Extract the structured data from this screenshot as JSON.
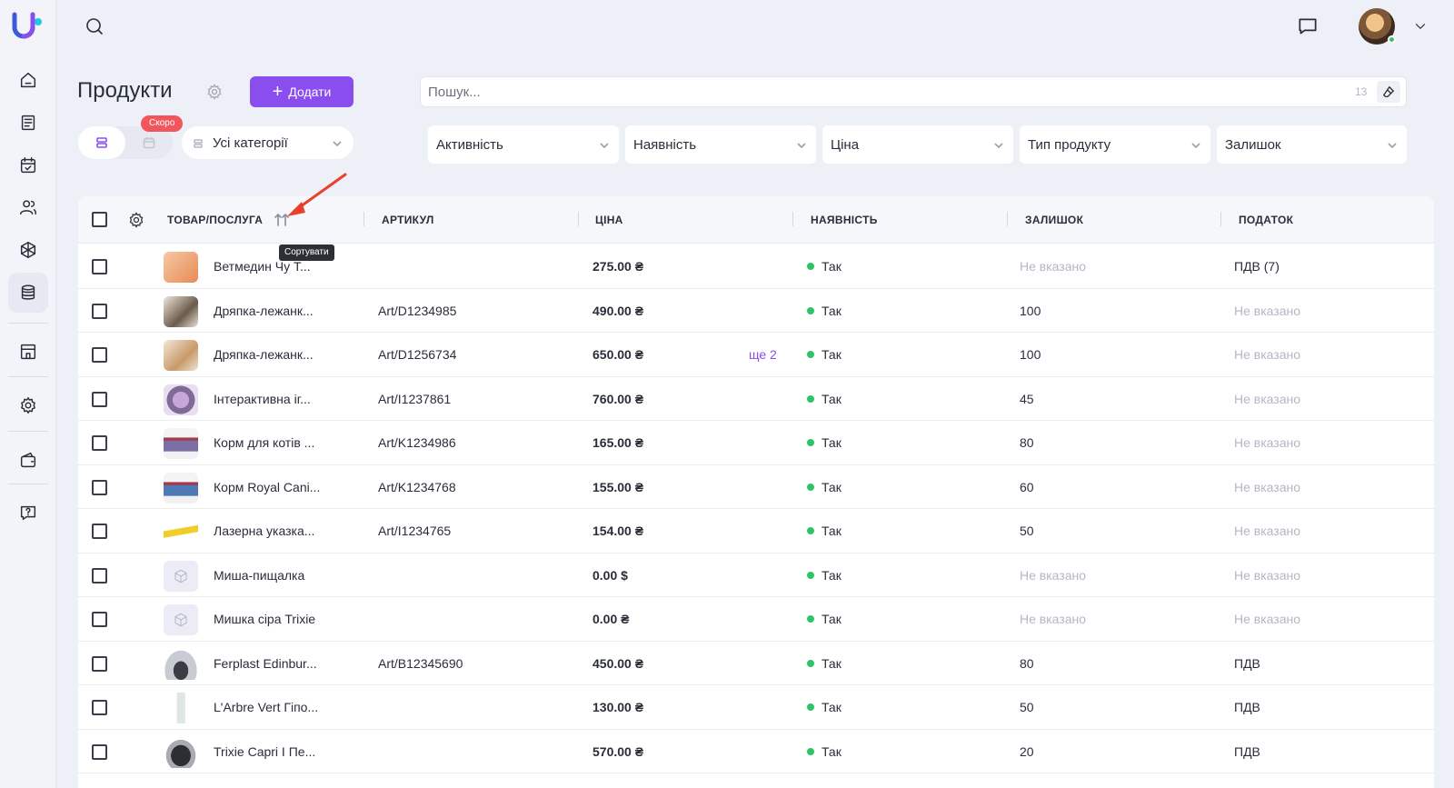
{
  "sidebar": {
    "items": [
      {
        "icon": "home-icon"
      },
      {
        "icon": "document-icon"
      },
      {
        "icon": "calendar-check-icon"
      },
      {
        "icon": "users-icon"
      },
      {
        "icon": "cube-icon"
      },
      {
        "icon": "database-icon",
        "active": true
      },
      {
        "icon": "store-icon"
      },
      {
        "icon": "gear-icon"
      },
      {
        "icon": "wallet-icon"
      },
      {
        "icon": "help-chat-icon"
      }
    ]
  },
  "page": {
    "title": "Продукти",
    "add_label": "Додати",
    "search_placeholder": "Пошук...",
    "search_count": "13",
    "soon_badge": "Скоро",
    "category_select": "Усі категорії"
  },
  "filters": [
    "Активність",
    "Наявність",
    "Ціна",
    "Тип продукту",
    "Залишок"
  ],
  "table": {
    "headers": [
      "ТОВАР/ПОСЛУГА",
      "АРТИКУЛ",
      "ЦІНА",
      "НАЯВНІСТЬ",
      "ЗАЛИШОК",
      "ПОДАТОК"
    ],
    "sort_tooltip": "Сортувати",
    "rows": [
      {
        "name": "Ветмедин Чу Т...",
        "sku": "",
        "price": "275.00 ₴",
        "more": "",
        "availability": "Так",
        "stock": "Не вказано",
        "tax": "ПДВ (7)"
      },
      {
        "name": "Дряпка-лежанк...",
        "sku": "Art/D1234985",
        "price": "490.00 ₴",
        "more": "",
        "availability": "Так",
        "stock": "100",
        "tax": "Не вказано"
      },
      {
        "name": "Дряпка-лежанк...",
        "sku": "Art/D1256734",
        "price": "650.00 ₴",
        "more": "ще 2",
        "availability": "Так",
        "stock": "100",
        "tax": "Не вказано"
      },
      {
        "name": "Інтерактивна іг...",
        "sku": "Art/I1237861",
        "price": "760.00 ₴",
        "more": "",
        "availability": "Так",
        "stock": "45",
        "tax": "Не вказано"
      },
      {
        "name": "Корм для котів ...",
        "sku": "Art/K1234986",
        "price": "165.00 ₴",
        "more": "",
        "availability": "Так",
        "stock": "80",
        "tax": "Не вказано"
      },
      {
        "name": "Корм Royal Cani...",
        "sku": "Art/K1234768",
        "price": "155.00 ₴",
        "more": "",
        "availability": "Так",
        "stock": "60",
        "tax": "Не вказано"
      },
      {
        "name": "Лазерна указка...",
        "sku": "Art/I1234765",
        "price": "154.00 ₴",
        "more": "",
        "availability": "Так",
        "stock": "50",
        "tax": "Не вказано"
      },
      {
        "name": "Миша-пищалка",
        "sku": "",
        "price": "0.00 $",
        "more": "",
        "availability": "Так",
        "stock": "Не вказано",
        "tax": "Не вказано"
      },
      {
        "name": "Мишка сіра Trixie",
        "sku": "",
        "price": "0.00 ₴",
        "more": "",
        "availability": "Так",
        "stock": "Не вказано",
        "tax": "Не вказано"
      },
      {
        "name": "Ferplast Edinbur...",
        "sku": "Art/B12345690",
        "price": "450.00 ₴",
        "more": "",
        "availability": "Так",
        "stock": "80",
        "tax": "ПДВ"
      },
      {
        "name": "L'Arbre Vert Гіпо...",
        "sku": "",
        "price": "130.00 ₴",
        "more": "",
        "availability": "Так",
        "stock": "50",
        "tax": "ПДВ"
      },
      {
        "name": "Trixie Capri I Пе...",
        "sku": "",
        "price": "570.00 ₴",
        "more": "",
        "availability": "Так",
        "stock": "20",
        "tax": "ПДВ"
      }
    ]
  },
  "colors": {
    "accent": "#8a4dee",
    "badge": "#f0565c",
    "available": "#2ec466",
    "annotation": "#e8402c"
  }
}
